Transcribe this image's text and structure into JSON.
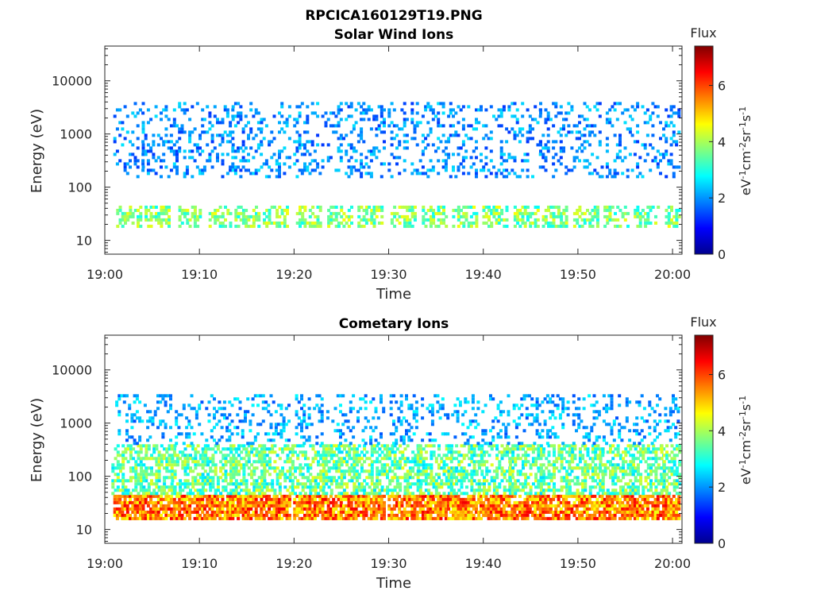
{
  "figure_title": "RPCICA160129T19.PNG",
  "colorbar": {
    "label_top": "Flux",
    "unit_parts": [
      "eV",
      "-1",
      "cm",
      "-2",
      "sr",
      "-1",
      "s",
      "-1"
    ],
    "ticks": [
      "0",
      "2",
      "4",
      "6"
    ],
    "range": [
      0,
      7.4
    ],
    "colormap": "jet"
  },
  "chart_data": [
    {
      "type": "heatmap",
      "title": "Solar Wind Ions",
      "xlabel": "Time",
      "ylabel": "Energy (eV)",
      "y_scale": "log",
      "ylim": [
        5.5,
        45000
      ],
      "x_range": [
        "19:00",
        "20:01"
      ],
      "x_ticks": [
        "19:00",
        "19:10",
        "19:20",
        "19:30",
        "19:40",
        "19:50",
        "20:00"
      ],
      "y_ticks": [
        "10",
        "100",
        "1000",
        "10000"
      ],
      "bursts_at": [
        "19:02.5",
        "19:05.5",
        "19:08.8",
        "19:12",
        "19:15",
        "19:18",
        "19:21.5",
        "19:24.8",
        "19:28",
        "19:31.5",
        "19:34.8",
        "19:38",
        "19:41.2",
        "19:44.5",
        "19:47.5",
        "19:50.8",
        "19:54",
        "19:57.2",
        "20:00.5"
      ],
      "low_band_energy_eV": [
        18,
        45
      ],
      "low_band_flux": [
        2.8,
        4.6
      ],
      "high_band_energy_eV": [
        150,
        4000
      ],
      "high_band_flux": [
        1.3,
        2.6
      ]
    },
    {
      "type": "heatmap",
      "title": "Cometary Ions",
      "xlabel": "Time",
      "ylabel": "Energy (eV)",
      "y_scale": "log",
      "ylim": [
        5.5,
        45000
      ],
      "x_range": [
        "19:00",
        "20:01"
      ],
      "x_ticks": [
        "19:00",
        "19:10",
        "19:20",
        "19:30",
        "19:40",
        "19:50",
        "20:00"
      ],
      "y_ticks": [
        "10",
        "100",
        "1000",
        "10000"
      ],
      "bursts_at": [
        "19:02.5",
        "19:05.5",
        "19:08.8",
        "19:12",
        "19:15",
        "19:18",
        "19:21.5",
        "19:24.8",
        "19:28",
        "19:31.5",
        "19:34.8",
        "19:38",
        "19:41.2",
        "19:44.5",
        "19:47.5",
        "19:50.8",
        "19:54",
        "19:57.2",
        "20:00.5"
      ],
      "core_band_energy_eV": [
        15,
        45
      ],
      "core_band_flux": [
        4.5,
        6.6
      ],
      "mid_band_energy_eV": [
        45,
        400
      ],
      "mid_band_flux": [
        2.5,
        4.5
      ],
      "high_band_energy_eV": [
        400,
        3500
      ],
      "high_band_flux": [
        1.5,
        2.8
      ]
    }
  ]
}
